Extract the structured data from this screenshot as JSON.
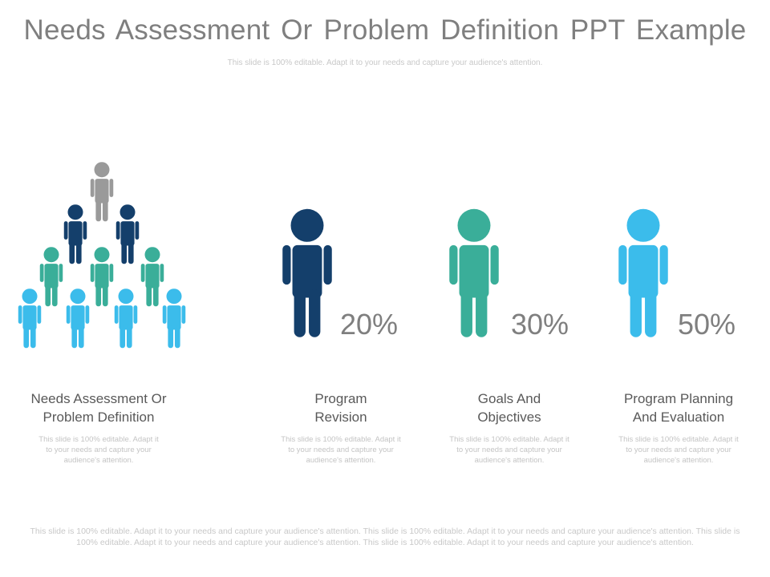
{
  "header": {
    "title": "Needs Assessment Or Problem Definition PPT Example",
    "subtitle": "This slide is 100% editable. Adapt it to your needs and capture your audience's attention."
  },
  "colors": {
    "gray": "#9a9a9a",
    "navy": "#143f6b",
    "teal": "#3aae99",
    "sky": "#3bbceb"
  },
  "icons": [
    "person-icon"
  ],
  "stats": [
    {
      "value": "20%"
    },
    {
      "value": "30%"
    },
    {
      "value": "50%"
    }
  ],
  "columns": [
    {
      "title_line1": "Needs Assessment Or",
      "title_line2": "Problem Definition",
      "desc": "This slide is 100% editable. Adapt it to your needs and capture your audience's attention."
    },
    {
      "title_line1": "Program",
      "title_line2": "Revision",
      "desc": "This slide is 100% editable. Adapt it to your needs and capture your audience's attention."
    },
    {
      "title_line1": "Goals And",
      "title_line2": "Objectives",
      "desc": "This slide is 100% editable. Adapt it to your needs and capture your audience's attention."
    },
    {
      "title_line1": "Program Planning",
      "title_line2": "And Evaluation",
      "desc": "This slide is 100% editable. Adapt it to your needs and capture your audience's attention."
    }
  ],
  "footer": "This slide is 100% editable. Adapt it to your needs and capture your audience's attention. This slide is 100% editable. Adapt it to your needs and capture your audience's attention. This slide is 100% editable. Adapt it to your needs and capture your audience's attention. This slide is 100% editable. Adapt it to your needs and capture your audience's attention."
}
